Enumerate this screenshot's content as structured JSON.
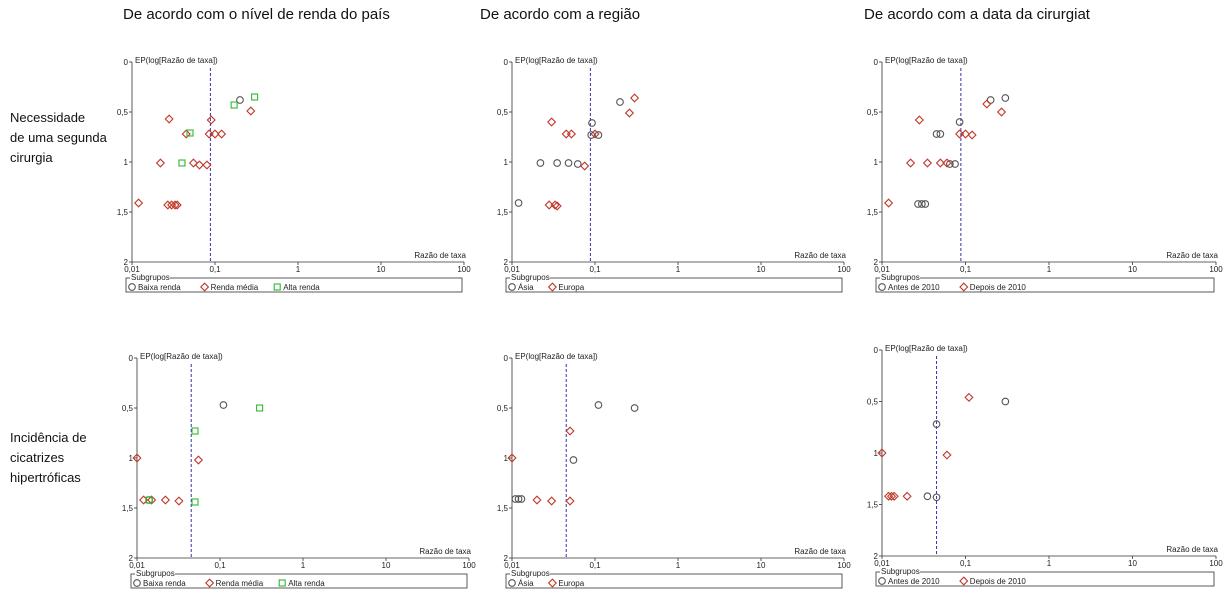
{
  "columns": [
    "De acordo com o nível de renda do país",
    "De acordo com a região",
    "De acordo com a data da cirurgiat"
  ],
  "rows": [
    [
      "Necessidade",
      "de uma segunda",
      "cirurgia"
    ],
    [
      "Incidência de",
      "cicatrizes",
      "hipertróficas"
    ]
  ],
  "colors": {
    "circle": "#555555",
    "diamond": "#c0392b",
    "square": "#2eb82e",
    "refline": "#3333aa"
  },
  "chart_data": [
    {
      "type": "scatter",
      "ylabel": "EP(log[Razão de taxa])",
      "xlabel": "Razão de taxa",
      "xscale": "log",
      "xlim": [
        0.01,
        100
      ],
      "ylim": [
        0,
        2
      ],
      "y_inverted": true,
      "xticks": [
        "0,01",
        "0,1",
        "1",
        "10",
        "100"
      ],
      "yticks": [
        "0",
        "0,5",
        "1",
        "1,5",
        "2"
      ],
      "legend_title": "Subgrupos",
      "reference_line_x": 0.088,
      "series": [
        {
          "name": "Baixa renda",
          "marker": "circle",
          "x": [
            0.2
          ],
          "y": [
            0.38
          ]
        },
        {
          "name": "Renda média",
          "marker": "diamond",
          "x": [
            0.012,
            0.022,
            0.027,
            0.028,
            0.03,
            0.033,
            0.035,
            0.045,
            0.055,
            0.065,
            0.08,
            0.085,
            0.09,
            0.1,
            0.12,
            0.27
          ],
          "y": [
            1.41,
            1.01,
            1.43,
            0.57,
            1.43,
            1.43,
            1.43,
            0.72,
            1.01,
            1.03,
            1.03,
            0.72,
            0.58,
            0.72,
            0.72,
            0.49
          ]
        },
        {
          "name": "Alta renda",
          "marker": "square",
          "x": [
            0.04,
            0.05,
            0.17,
            0.3
          ],
          "y": [
            1.01,
            0.71,
            0.43,
            0.35
          ]
        }
      ]
    },
    {
      "type": "scatter",
      "ylabel": "EP(log[Razão de taxa])",
      "xlabel": "Razão de taxa",
      "xscale": "log",
      "xlim": [
        0.01,
        100
      ],
      "ylim": [
        0,
        2
      ],
      "y_inverted": true,
      "xticks": [
        "0,01",
        "0,1",
        "1",
        "10",
        "100"
      ],
      "yticks": [
        "0",
        "0,5",
        "1",
        "1,5",
        "2"
      ],
      "legend_title": "Subgrupos",
      "reference_line_x": 0.088,
      "series": [
        {
          "name": "Ásia",
          "marker": "circle",
          "x": [
            0.012,
            0.022,
            0.035,
            0.048,
            0.062,
            0.09,
            0.092,
            0.11,
            0.2
          ],
          "y": [
            1.41,
            1.01,
            1.01,
            1.01,
            1.02,
            0.73,
            0.61,
            0.73,
            0.4
          ]
        },
        {
          "name": "Europa",
          "marker": "diamond",
          "x": [
            0.028,
            0.03,
            0.033,
            0.035,
            0.045,
            0.052,
            0.075,
            0.1,
            0.26,
            0.3
          ],
          "y": [
            1.43,
            0.6,
            1.43,
            1.44,
            0.72,
            0.72,
            1.04,
            0.72,
            0.51,
            0.36
          ]
        }
      ]
    },
    {
      "type": "scatter",
      "ylabel": "EP(log[Razão de taxa])",
      "xlabel": "Razão de taxa",
      "xscale": "log",
      "xlim": [
        0.01,
        100
      ],
      "ylim": [
        0,
        2
      ],
      "y_inverted": true,
      "xticks": [
        "0,01",
        "0,1",
        "1",
        "10",
        "100"
      ],
      "yticks": [
        "0",
        "0,5",
        "1",
        "1,5",
        "2"
      ],
      "legend_title": "Subgrupos",
      "reference_line_x": 0.088,
      "series": [
        {
          "name": "Antes de 2010",
          "marker": "circle",
          "x": [
            0.027,
            0.03,
            0.033,
            0.045,
            0.05,
            0.065,
            0.075,
            0.085,
            0.2,
            0.3
          ],
          "y": [
            1.42,
            1.42,
            1.42,
            0.72,
            0.72,
            1.02,
            1.02,
            0.6,
            0.38,
            0.36
          ]
        },
        {
          "name": "Depois de 2010",
          "marker": "diamond",
          "x": [
            0.012,
            0.022,
            0.028,
            0.035,
            0.05,
            0.06,
            0.085,
            0.1,
            0.12,
            0.18,
            0.27
          ],
          "y": [
            1.41,
            1.01,
            0.58,
            1.01,
            1.01,
            1.01,
            0.72,
            0.72,
            0.73,
            0.42,
            0.5
          ]
        }
      ]
    },
    {
      "type": "scatter",
      "ylabel": "EP(log[Razão de taxa])",
      "xlabel": "Razão de taxa",
      "xscale": "log",
      "xlim": [
        0.01,
        100
      ],
      "ylim": [
        0,
        2
      ],
      "y_inverted": true,
      "xticks": [
        "0,01",
        "0,1",
        "1",
        "10",
        "100"
      ],
      "yticks": [
        "0",
        "0,5",
        "1",
        "1,5",
        "2"
      ],
      "legend_title": "Subgrupos",
      "reference_line_x": 0.045,
      "series": [
        {
          "name": "Baixa renda",
          "marker": "circle",
          "x": [
            0.11,
            0.014
          ],
          "y": [
            0.47,
            1.42
          ]
        },
        {
          "name": "Renda média",
          "marker": "diamond",
          "x": [
            0.01,
            0.012,
            0.015,
            0.022,
            0.032,
            0.055
          ],
          "y": [
            1.0,
            1.42,
            1.42,
            1.42,
            1.43,
            1.02
          ]
        },
        {
          "name": "Alta renda",
          "marker": "square",
          "x": [
            0.05,
            0.05,
            0.3,
            0.014
          ],
          "y": [
            0.73,
            1.44,
            0.5,
            1.42
          ]
        }
      ]
    },
    {
      "type": "scatter",
      "ylabel": "EP(log[Razão de taxa])",
      "xlabel": "Razão de taxa",
      "xscale": "log",
      "xlim": [
        0.01,
        100
      ],
      "ylim": [
        0,
        2
      ],
      "y_inverted": true,
      "xticks": [
        "0,01",
        "0,1",
        "1",
        "10",
        "100"
      ],
      "yticks": [
        "0",
        "0,5",
        "1",
        "1,5",
        "2"
      ],
      "legend_title": "Subgrupos",
      "reference_line_x": 0.045,
      "series": [
        {
          "name": "Ásia",
          "marker": "circle",
          "x": [
            0.011,
            0.012,
            0.013,
            0.055,
            0.11,
            0.3
          ],
          "y": [
            1.41,
            1.41,
            1.41,
            1.02,
            0.47,
            0.5
          ]
        },
        {
          "name": "Europa",
          "marker": "diamond",
          "x": [
            0.01,
            0.02,
            0.03,
            0.05,
            0.05
          ],
          "y": [
            1.0,
            1.42,
            1.43,
            1.43,
            0.73
          ]
        }
      ]
    },
    {
      "type": "scatter",
      "ylabel": "EP(log[Razão de taxa])",
      "xlabel": "Razão de taxa",
      "xscale": "log",
      "xlim": [
        0.01,
        100
      ],
      "ylim": [
        0,
        2
      ],
      "y_inverted": true,
      "xticks": [
        "0,01",
        "0,1",
        "1",
        "10",
        "100"
      ],
      "yticks": [
        "0",
        "0,5",
        "1",
        "1,5",
        "2"
      ],
      "legend_title": "Subgrupos",
      "reference_line_x": 0.045,
      "series": [
        {
          "name": "Antes de 2010",
          "marker": "circle",
          "x": [
            0.035,
            0.045,
            0.045,
            0.3
          ],
          "y": [
            1.42,
            1.43,
            0.72,
            0.5
          ]
        },
        {
          "name": "Depois de 2010",
          "marker": "diamond",
          "x": [
            0.01,
            0.012,
            0.013,
            0.014,
            0.02,
            0.06,
            0.11
          ],
          "y": [
            1.0,
            1.42,
            1.42,
            1.42,
            1.42,
            1.02,
            0.46
          ]
        }
      ]
    }
  ]
}
